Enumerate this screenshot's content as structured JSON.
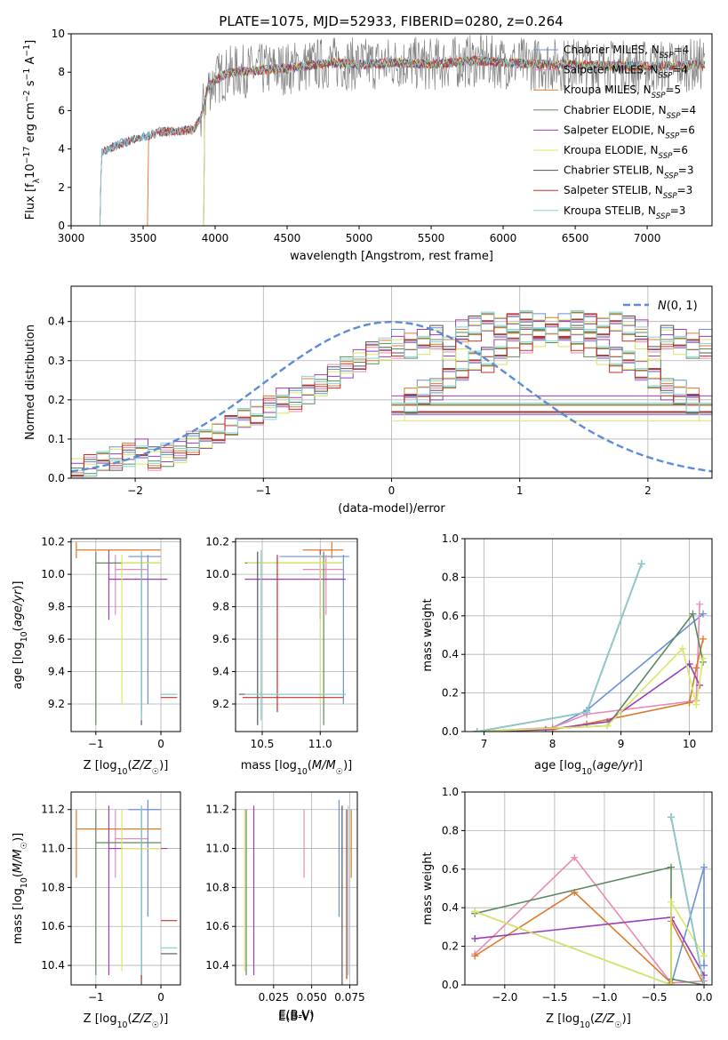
{
  "figure": {
    "title": "PLATE=1075, MJD=52933, FIBERID=0280, z=0.264"
  },
  "models": [
    {
      "name": "Chabrier MILES",
      "n_ssp": "4",
      "color": "#6c8fdc"
    },
    {
      "name": "Salpeter MILES",
      "n_ssp": "4",
      "color": "#e989b7"
    },
    {
      "name": "Kroupa MILES",
      "n_ssp": "5",
      "color": "#dc7a2c"
    },
    {
      "name": "Chabrier ELODIE",
      "n_ssp": "4",
      "color": "#5c8a5e"
    },
    {
      "name": "Salpeter ELODIE",
      "n_ssp": "6",
      "color": "#9a3fb5"
    },
    {
      "name": "Kroupa ELODIE",
      "n_ssp": "6",
      "color": "#d8e860"
    },
    {
      "name": "Chabrier STELIB",
      "n_ssp": "3",
      "color": "#555555"
    },
    {
      "name": "Salpeter STELIB",
      "n_ssp": "3",
      "color": "#c8302a"
    },
    {
      "name": "Kroupa STELIB",
      "n_ssp": "3",
      "color": "#84d4d6"
    }
  ],
  "chart_data": [
    {
      "id": "spectrum",
      "type": "line",
      "xlabel": "wavelength [Angstrom, rest frame]",
      "ylabel": "Flux [f_λ 10^-17 erg cm^-2 s^-1 A^-1]",
      "xlim": [
        3000,
        7450
      ],
      "ylim": [
        0,
        10
      ],
      "xticks": [
        3000,
        3500,
        4000,
        4500,
        5000,
        5500,
        6000,
        6500,
        7000
      ],
      "yticks": [
        0,
        2,
        4,
        6,
        8,
        10
      ],
      "legend": "right",
      "data_color": "#808080",
      "data_trend": {
        "x": [
          3200,
          3210,
          3350,
          3500,
          3620,
          3700,
          3850,
          3900,
          3950,
          4000,
          4100,
          4300,
          4500,
          4800,
          5000,
          5300,
          5500,
          5800,
          6000,
          6300,
          6500,
          6800,
          7000,
          7400
        ],
        "y": [
          0,
          3.8,
          4.3,
          4.6,
          4.9,
          4.9,
          5.0,
          5.6,
          7.2,
          7.6,
          8.0,
          8.1,
          8.2,
          8.5,
          8.4,
          8.5,
          8.4,
          8.6,
          8.5,
          8.4,
          8.4,
          8.3,
          8.3,
          8.4
        ]
      },
      "data_noise": 1.4,
      "model_starts": [
        3200,
        3530,
        3530,
        3920,
        3920,
        3920,
        3200,
        3200,
        3200
      ]
    },
    {
      "id": "residual-histogram",
      "type": "bar",
      "xlabel": "(data-model)/error",
      "ylabel": "Normed distribution",
      "xlim": [
        -2.5,
        2.5
      ],
      "ylim": [
        0,
        0.49
      ],
      "xticks": [
        -2,
        -1,
        0,
        1,
        2
      ],
      "yticks": [
        0.0,
        0.1,
        0.2,
        0.3,
        0.4
      ],
      "bin_edges_start": -2.5,
      "bin_width": 0.1,
      "legend": "top-right",
      "reference": {
        "name": "N(0,1)",
        "mu": 0,
        "sigma": 1
      },
      "series": [
        {
          "values": [
            0.02,
            0.03,
            0.05,
            0.05,
            0.06,
            0.07,
            0.05,
            0.06,
            0.07,
            0.09,
            0.1,
            0.12,
            0.14,
            0.16,
            0.17,
            0.18,
            0.2,
            0.2,
            0.23,
            0.24,
            0.26,
            0.28,
            0.31,
            0.33,
            0.34,
            0.35,
            0.34,
            0.35,
            0.36,
            0.33,
            0.38,
            0.39,
            0.4,
            0.39,
            0.4,
            0.41,
            0.39,
            0.38,
            0.37,
            0.36,
            0.35,
            0.33,
            0.31,
            0.3,
            0.28,
            0.26,
            0.23,
            0.22,
            0.2,
            0.18
          ]
        },
        {
          "values": [
            0.02,
            0.03,
            0.04,
            0.05,
            0.06,
            0.06,
            0.05,
            0.06,
            0.07,
            0.09,
            0.09,
            0.11,
            0.13,
            0.15,
            0.16,
            0.18,
            0.19,
            0.2,
            0.22,
            0.24,
            0.26,
            0.28,
            0.29,
            0.31,
            0.32,
            0.33,
            0.33,
            0.34,
            0.36,
            0.31,
            0.36,
            0.38,
            0.39,
            0.38,
            0.39,
            0.4,
            0.38,
            0.37,
            0.36,
            0.35,
            0.34,
            0.32,
            0.3,
            0.29,
            0.27,
            0.25,
            0.23,
            0.21,
            0.19,
            0.17
          ]
        }
      ]
    },
    {
      "id": "age-vs-z",
      "type": "scatter",
      "xlabel": "Z [log10(Z/Z☉)]",
      "ylabel": "age [log10(age/yr)]",
      "xlim": [
        -1.38,
        0.3
      ],
      "ylim": [
        9.03,
        10.22
      ],
      "xticks": [
        -1,
        0
      ],
      "yticks": [
        9.2,
        9.4,
        9.6,
        9.8,
        10.0,
        10.2
      ]
    },
    {
      "id": "age-vs-mass",
      "type": "scatter",
      "xlabel": "mass [log10(M/M☉)]",
      "ylabel": "",
      "xlim": [
        10.27,
        11.32
      ],
      "ylim": [
        9.03,
        10.22
      ],
      "xticks": [
        10.5,
        11.0
      ],
      "yticks": [
        9.2,
        9.4,
        9.6,
        9.8,
        10.0,
        10.2
      ]
    },
    {
      "id": "massweight-vs-age",
      "type": "line",
      "xlabel": "age [log10(age/yr)]",
      "ylabel": "mass weight",
      "xlim": [
        6.72,
        10.33
      ],
      "ylim": [
        0,
        1.0
      ],
      "xticks": [
        7,
        8,
        9,
        10
      ],
      "yticks": [
        0.0,
        0.2,
        0.4,
        0.6,
        0.8,
        1.0
      ],
      "series": [
        {
          "x": [
            6.9,
            8.0,
            8.5,
            10.2
          ],
          "y": [
            0.0,
            0.02,
            0.11,
            0.61
          ]
        },
        {
          "x": [
            6.9,
            8.0,
            8.5,
            10.1,
            10.15
          ],
          "y": [
            0.0,
            0.02,
            0.09,
            0.16,
            0.66
          ]
        },
        {
          "x": [
            6.9,
            8.0,
            8.5,
            10.0,
            10.1,
            10.2
          ],
          "y": [
            0.0,
            0.01,
            0.04,
            0.15,
            0.33,
            0.48
          ]
        },
        {
          "x": [
            6.9,
            8.8,
            10.05,
            10.2
          ],
          "y": [
            0.0,
            0.03,
            0.61,
            0.36
          ]
        },
        {
          "x": [
            6.9,
            7.9,
            8.8,
            10.0,
            10.15
          ],
          "y": [
            0.0,
            0.01,
            0.05,
            0.35,
            0.24
          ]
        },
        {
          "x": [
            6.9,
            8.8,
            9.9,
            10.1,
            10.2
          ],
          "y": [
            0.0,
            0.03,
            0.43,
            0.14,
            0.38
          ]
        },
        {
          "x": [
            6.9,
            8.5,
            9.3
          ],
          "y": [
            0.0,
            0.1,
            0.87
          ]
        },
        {
          "x": [
            6.9,
            8.5,
            9.3
          ],
          "y": [
            0.0,
            0.1,
            0.87
          ]
        },
        {
          "x": [
            6.9,
            8.5,
            9.3
          ],
          "y": [
            0.0,
            0.1,
            0.87
          ]
        }
      ]
    },
    {
      "id": "mass-vs-z",
      "type": "scatter",
      "xlabel": "Z [log10(Z/Z☉)]",
      "ylabel": "mass [log10(M/M☉)]",
      "xlim": [
        -1.38,
        0.3
      ],
      "ylim": [
        10.3,
        11.29
      ],
      "xticks": [
        -1,
        0
      ],
      "yticks": [
        10.4,
        10.6,
        10.8,
        11.0,
        11.2
      ]
    },
    {
      "id": "mass-vs-ebv",
      "type": "scatter",
      "xlabel": "E(B-V)",
      "ylabel": "",
      "xlim": [
        0.0,
        0.08
      ],
      "ylim": [
        10.3,
        11.29
      ],
      "xticks": [
        0.025,
        0.05,
        0.075
      ],
      "yticks": [
        10.4,
        10.6,
        10.8,
        11.0,
        11.2
      ]
    },
    {
      "id": "massweight-vs-z",
      "type": "line",
      "xlabel": "Z [log10(Z/Z☉)]",
      "ylabel": "mass weight",
      "xlim": [
        -2.4,
        0.08
      ],
      "ylim": [
        0,
        1.0
      ],
      "xticks": [
        -2.0,
        -1.5,
        -1.0,
        -0.5,
        0.0
      ],
      "yticks": [
        0.0,
        0.2,
        0.4,
        0.6,
        0.8,
        1.0
      ],
      "series": [
        {
          "x": [
            -2.3,
            -0.33,
            0.0,
            0.0
          ],
          "y": [
            0.38,
            0.0,
            0.61,
            0.1
          ]
        },
        {
          "x": [
            -2.3,
            -1.3,
            -0.33,
            0.0
          ],
          "y": [
            0.16,
            0.66,
            0.01,
            0.02
          ]
        },
        {
          "x": [
            -2.3,
            -1.3,
            -0.33,
            -0.33,
            0.0
          ],
          "y": [
            0.15,
            0.48,
            0.01,
            0.33,
            0.0
          ]
        },
        {
          "x": [
            -2.3,
            -0.33,
            -0.33,
            0.0
          ],
          "y": [
            0.37,
            0.61,
            0.03,
            0.0
          ]
        },
        {
          "x": [
            -2.3,
            -0.33,
            0.0
          ],
          "y": [
            0.24,
            0.35,
            0.05
          ]
        },
        {
          "x": [
            -2.3,
            -0.33,
            -0.33,
            0.0
          ],
          "y": [
            0.38,
            0.0,
            0.43,
            0.15
          ]
        },
        {
          "x": [
            -0.33,
            0.0
          ],
          "y": [
            0.87,
            0.0
          ]
        },
        {
          "x": [
            -0.33,
            0.0
          ],
          "y": [
            0.87,
            0.0
          ]
        },
        {
          "x": [
            -0.33,
            0.0
          ],
          "y": [
            0.87,
            0.0
          ]
        }
      ]
    }
  ],
  "props": [
    {
      "z": [
        -0.2,
        -0.5,
        0.0
      ],
      "age": [
        10.11,
        9.2,
        10.12
      ],
      "mass": [
        11.2,
        10.65,
        11.25
      ],
      "ebv": 0.068
    },
    {
      "z": [
        -0.7,
        -0.7,
        -0.2
      ],
      "age": [
        10.03,
        9.75,
        10.12
      ],
      "mass": [
        11.05,
        10.85,
        11.2
      ],
      "ebv": 0.045
    },
    {
      "z": [
        -1.3,
        -1.3,
        0.0
      ],
      "age": [
        10.15,
        10.1,
        10.2
      ],
      "mass": [
        11.1,
        10.85,
        11.2
      ],
      "ebv": 0.076
    },
    {
      "z": [
        -1.0,
        -1.0,
        0.0
      ],
      "age": [
        10.07,
        9.07,
        10.14
      ],
      "mass": [
        11.03,
        10.35,
        11.2
      ],
      "ebv": 0.007
    },
    {
      "z": [
        -0.8,
        -0.8,
        0.1
      ],
      "age": [
        9.97,
        9.72,
        10.15
      ],
      "mass": [
        11.0,
        10.35,
        11.22
      ],
      "ebv": 0.012
    },
    {
      "z": [
        -0.6,
        -0.6,
        0.0
      ],
      "age": [
        10.07,
        9.2,
        10.12
      ],
      "mass": [
        11.0,
        10.37,
        11.2
      ],
      "ebv": 0.006
    },
    {
      "z": [
        -0.3,
        0.0,
        0.25
      ],
      "age": [
        9.26,
        9.07,
        10.14
      ],
      "mass": [
        10.46,
        10.3,
        11.22
      ],
      "ebv": 0.07
    },
    {
      "z": [
        -0.3,
        0.0,
        0.25
      ],
      "age": [
        9.24,
        9.15,
        10.12
      ],
      "mass": [
        10.63,
        10.33,
        11.2
      ],
      "ebv": 0.073
    },
    {
      "z": [
        -0.3,
        0.0,
        0.25
      ],
      "age": [
        9.26,
        9.1,
        10.15
      ],
      "mass": [
        10.49,
        10.35,
        11.22
      ],
      "ebv": 0.074
    }
  ]
}
